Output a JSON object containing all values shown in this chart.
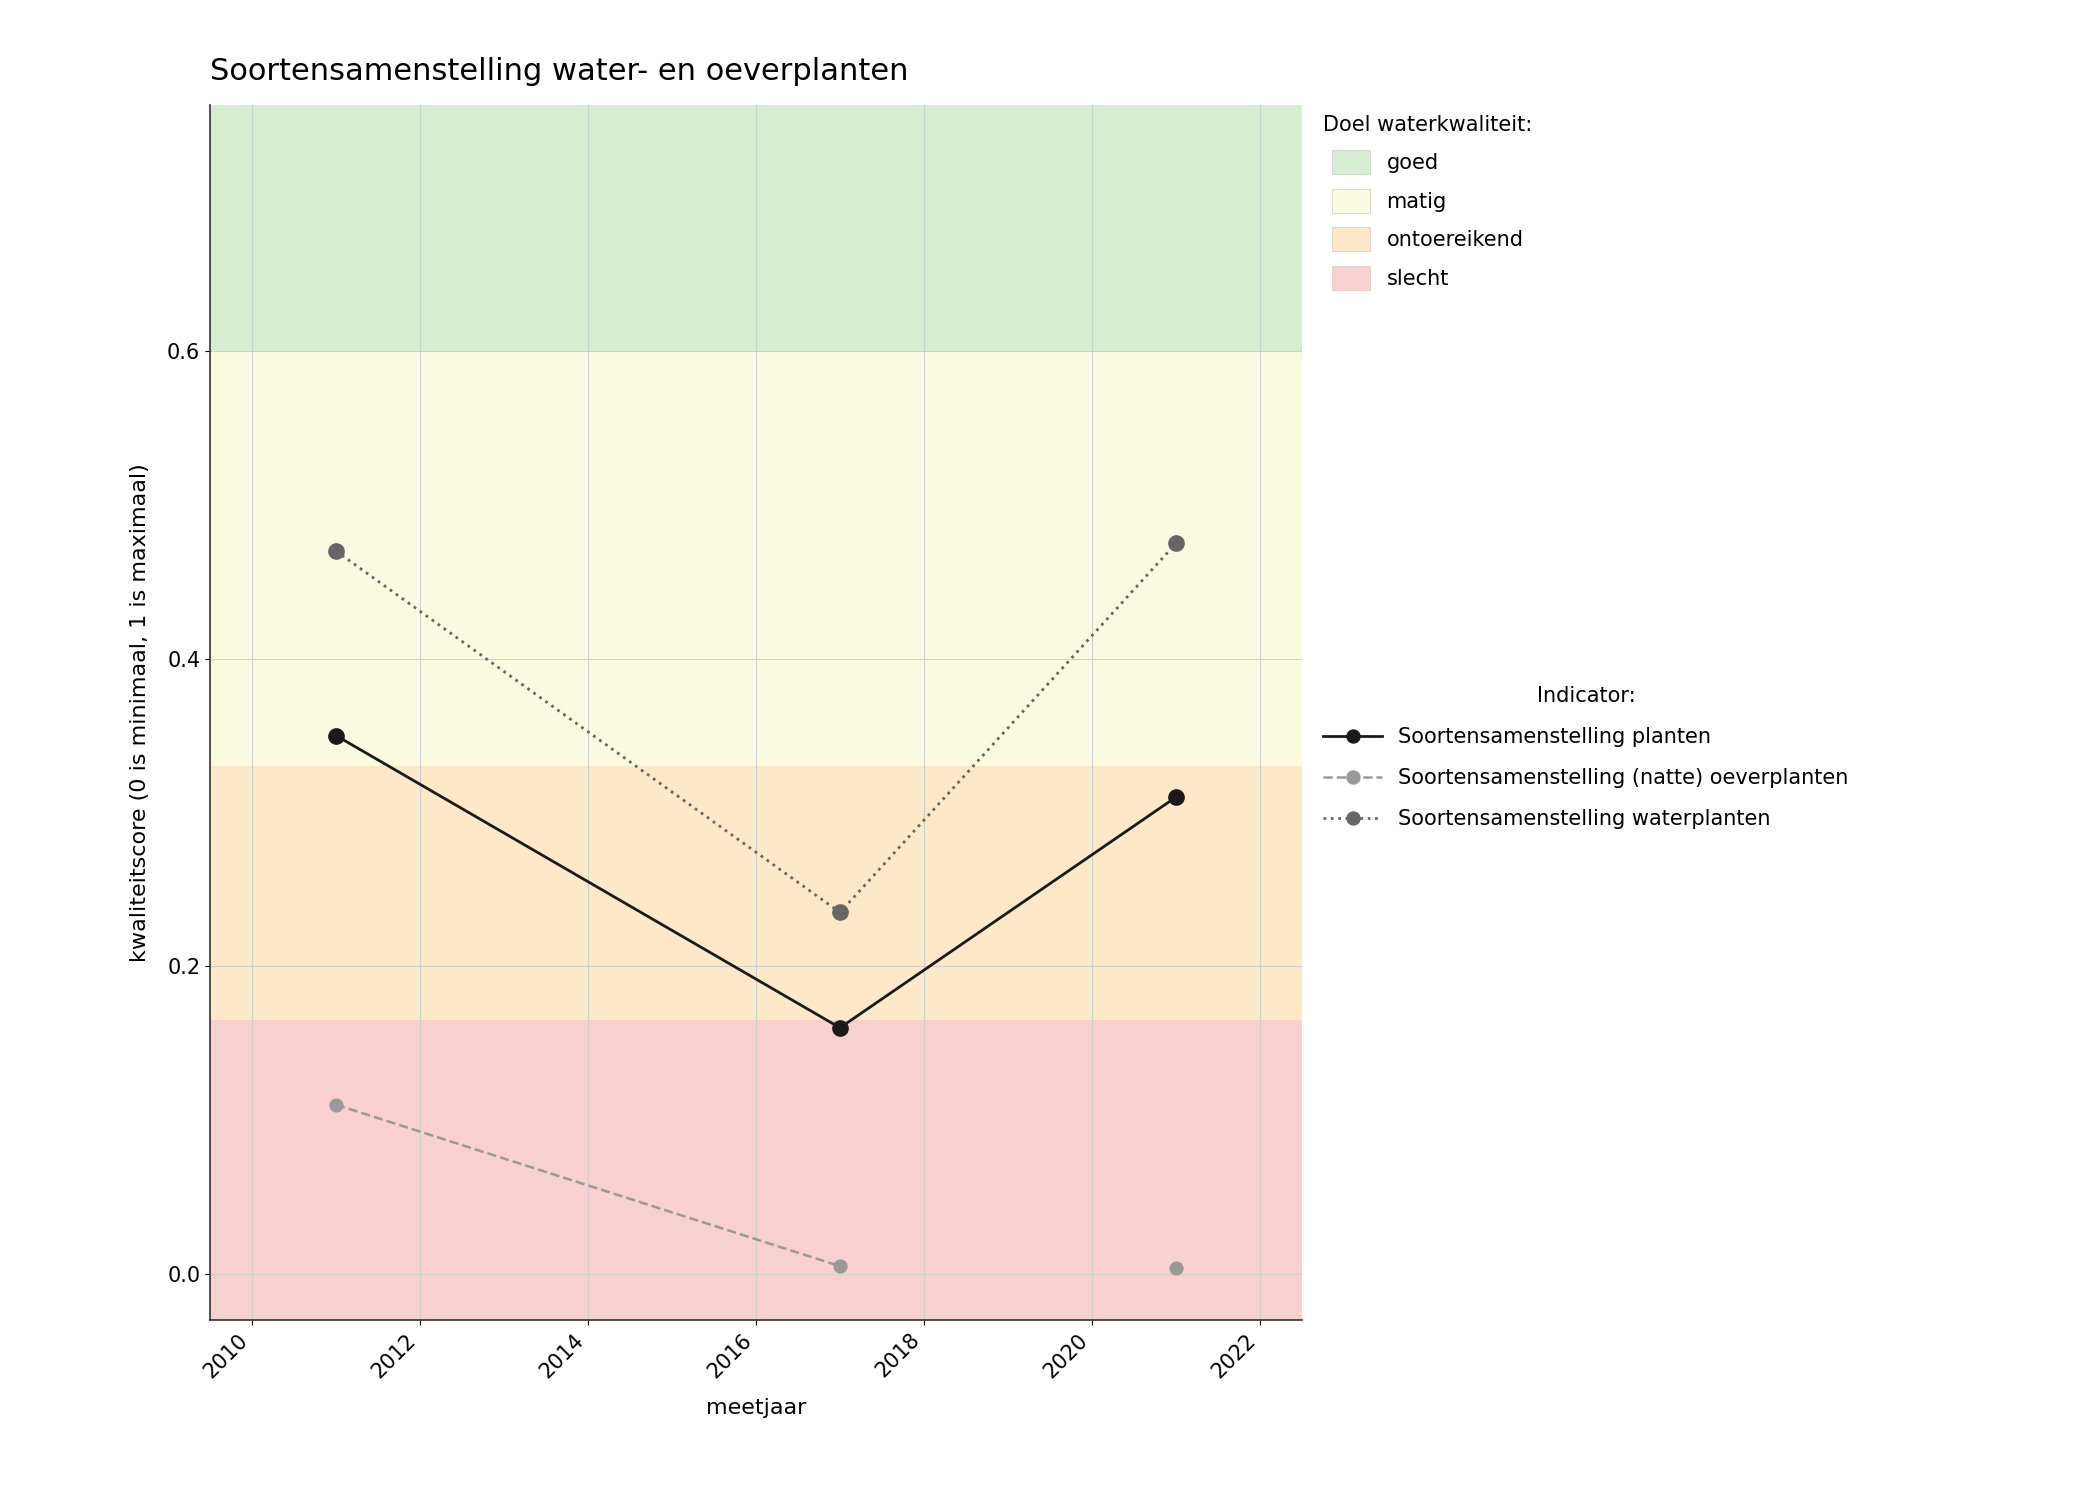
{
  "title": "Soortensamenstelling water- en oeverplanten",
  "xlabel": "meetjaar",
  "ylabel": "kwaliteitscore (0 is minimaal, 1 is maximaal)",
  "xlim": [
    2009.5,
    2022.5
  ],
  "ylim": [
    -0.03,
    0.76
  ],
  "xticks": [
    2010,
    2012,
    2014,
    2016,
    2018,
    2020,
    2022
  ],
  "yticks": [
    0.0,
    0.2,
    0.4,
    0.6
  ],
  "bg_bands": [
    {
      "label": "goed",
      "ymin": 0.6,
      "ymax": 0.76,
      "color": "#d5eed0"
    },
    {
      "label": "matig",
      "ymin": 0.33,
      "ymax": 0.6,
      "color": "#fafae0"
    },
    {
      "label": "ontoereikend",
      "ymin": 0.165,
      "ymax": 0.33,
      "color": "#fde8c8"
    },
    {
      "label": "slecht",
      "ymin": -0.03,
      "ymax": 0.165,
      "color": "#f8d0d0"
    }
  ],
  "legend_bg_labels": [
    "goed",
    "matig",
    "ontoereikend",
    "slecht"
  ],
  "legend_bg_colors": [
    "#d5eed0",
    "#fafae0",
    "#fde8c8",
    "#f8d0d0"
  ],
  "series": [
    {
      "name": "Soortensamenstelling planten",
      "x": [
        2011,
        2017,
        2021
      ],
      "y": [
        0.35,
        0.16,
        0.31
      ],
      "color": "#1a1a1a",
      "linestyle": "-",
      "marker": "o",
      "markersize": 11,
      "linewidth": 2.0
    },
    {
      "name": "Soortensamenstelling (natte) oeverplanten",
      "x": [
        2011,
        2017,
        2021
      ],
      "y": [
        0.11,
        0.005,
        0.004
      ],
      "color": "#999999",
      "linestyle": "--",
      "marker": "o",
      "markersize": 11,
      "linewidth": 1.8,
      "connect_only": [
        0,
        1
      ]
    },
    {
      "name": "Soortensamenstelling waterplanten",
      "x": [
        2011,
        2017,
        2021
      ],
      "y": [
        0.47,
        0.235,
        0.475
      ],
      "color": "#666666",
      "linestyle": ":",
      "marker": "o",
      "markersize": 11,
      "linewidth": 2.0
    }
  ],
  "legend_indicator_title": "Indicator:",
  "legend_quality_title": "Doel waterkwaliteit:",
  "background_color": "#ffffff",
  "grid_color": "#d0d0d0",
  "title_fontsize": 22,
  "label_fontsize": 16,
  "tick_fontsize": 15,
  "legend_fontsize": 15
}
